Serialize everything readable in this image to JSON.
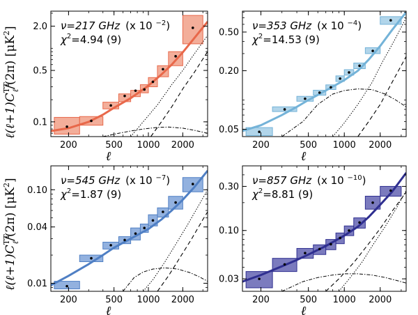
{
  "figure": {
    "ylabel_left": "ℓ(ℓ+1)C",
    "ylabel_sup": "TT",
    "ylabel_sub": "ℓ",
    "ylabel_tail": "/(2π)  [μK",
    "ylabel_sq": "2",
    "ylabel_close": "]",
    "xlabel": "ℓ"
  },
  "chart_data": [
    {
      "type": "line",
      "panel": "top-left",
      "title": "",
      "nu_label": "ν=217 GHz",
      "scale_label": "(x 10",
      "scale_exp": "−2",
      "chi2_label": "χ",
      "chi2_sup": "2",
      "chi2_value": "=4.94 (9)",
      "color": "#e8684a",
      "fill_color": "#f2a58f",
      "xlim": [
        140,
        3300
      ],
      "ylim": [
        0.063,
        3.2
      ],
      "xscale": "log",
      "yscale": "log",
      "xticks": [
        200,
        500,
        1000,
        2000
      ],
      "xtick_labels": [
        "200",
        "500",
        "1000",
        "2000"
      ],
      "yticks": [
        0.1,
        0.5,
        2.0
      ],
      "ytick_labels": [
        "0.1",
        "0.5",
        "2.0"
      ],
      "bins": [
        {
          "lo": 150,
          "hi": 250,
          "ylo": 0.068,
          "yhi": 0.115,
          "y": 0.086
        },
        {
          "lo": 250,
          "hi": 400,
          "ylo": 0.09,
          "yhi": 0.118,
          "y": 0.103
        },
        {
          "lo": 400,
          "hi": 550,
          "ylo": 0.15,
          "yhi": 0.185,
          "y": 0.167
        },
        {
          "lo": 550,
          "hi": 700,
          "ylo": 0.188,
          "yhi": 0.24,
          "y": 0.225
        },
        {
          "lo": 700,
          "hi": 850,
          "ylo": 0.22,
          "yhi": 0.268,
          "y": 0.265
        },
        {
          "lo": 850,
          "hi": 1000,
          "ylo": 0.248,
          "yhi": 0.32,
          "y": 0.275
        },
        {
          "lo": 1000,
          "hi": 1200,
          "ylo": 0.3,
          "yhi": 0.4,
          "y": 0.35
        },
        {
          "lo": 1200,
          "hi": 1500,
          "ylo": 0.41,
          "yhi": 0.58,
          "y": 0.52
        },
        {
          "lo": 1500,
          "hi": 2000,
          "ylo": 0.58,
          "yhi": 0.9,
          "y": 0.78
        },
        {
          "lo": 2000,
          "hi": 3000,
          "ylo": 1.15,
          "yhi": 2.8,
          "y": 1.9
        }
      ],
      "total_model": {
        "x": [
          140,
          200,
          300,
          400,
          500,
          700,
          1000,
          1300,
          1600,
          2000,
          2500,
          3300
        ],
        "y": [
          0.075,
          0.082,
          0.1,
          0.125,
          0.155,
          0.21,
          0.31,
          0.44,
          0.6,
          0.88,
          1.35,
          2.3
        ]
      },
      "dotted_model": {
        "x": [
          700,
          900,
          1200,
          1600,
          2000,
          2500,
          3300
        ],
        "y": [
          0.063,
          0.1,
          0.17,
          0.32,
          0.5,
          0.82,
          1.5
        ]
      },
      "dashed_model": {
        "x": [
          1050,
          1300,
          1600,
          2000,
          2500,
          3300
        ],
        "y": [
          0.063,
          0.1,
          0.16,
          0.28,
          0.46,
          0.9
        ]
      },
      "dashdot_model": {
        "x": [
          400,
          550,
          700,
          900,
          1200,
          1500,
          2000,
          2500,
          3300
        ],
        "y": [
          0.063,
          0.07,
          0.075,
          0.08,
          0.084,
          0.085,
          0.082,
          0.077,
          0.07
        ]
      }
    },
    {
      "type": "line",
      "panel": "top-right",
      "title": "",
      "nu_label": "ν=353 GHz",
      "scale_label": "(x 10",
      "scale_exp": "−4",
      "chi2_label": "χ",
      "chi2_sup": "2",
      "chi2_value": "=14.53 (9)",
      "color": "#74b3d8",
      "fill_color": "#a9d0e8",
      "xlim": [
        140,
        3300
      ],
      "ylim": [
        0.042,
        0.82
      ],
      "xscale": "log",
      "yscale": "log",
      "xticks": [
        200,
        500,
        1000,
        2000
      ],
      "xtick_labels": [
        "200",
        "500",
        "1000",
        "2000"
      ],
      "yticks": [
        0.05,
        0.2,
        0.5
      ],
      "ytick_labels": [
        "0.05",
        "0.20",
        "0.50"
      ],
      "bins": [
        {
          "lo": 150,
          "hi": 250,
          "ylo": 0.043,
          "yhi": 0.052,
          "y": 0.047
        },
        {
          "lo": 250,
          "hi": 400,
          "ylo": 0.076,
          "yhi": 0.085,
          "y": 0.08
        },
        {
          "lo": 400,
          "hi": 550,
          "ylo": 0.097,
          "yhi": 0.109,
          "y": 0.103
        },
        {
          "lo": 550,
          "hi": 700,
          "ylo": 0.112,
          "yhi": 0.126,
          "y": 0.119
        },
        {
          "lo": 700,
          "hi": 850,
          "ylo": 0.128,
          "yhi": 0.143,
          "y": 0.135
        },
        {
          "lo": 850,
          "hi": 1000,
          "ylo": 0.155,
          "yhi": 0.177,
          "y": 0.166
        },
        {
          "lo": 1000,
          "hi": 1200,
          "ylo": 0.18,
          "yhi": 0.205,
          "y": 0.192
        },
        {
          "lo": 1200,
          "hi": 1500,
          "ylo": 0.21,
          "yhi": 0.24,
          "y": 0.225
        },
        {
          "lo": 1500,
          "hi": 2000,
          "ylo": 0.3,
          "yhi": 0.345,
          "y": 0.32
        },
        {
          "lo": 2000,
          "hi": 3000,
          "ylo": 0.6,
          "yhi": 0.72,
          "y": 0.66
        }
      ],
      "total_model": {
        "x": [
          140,
          200,
          300,
          400,
          500,
          700,
          1000,
          1300,
          1600,
          2000,
          2500,
          3300
        ],
        "y": [
          0.048,
          0.055,
          0.07,
          0.085,
          0.1,
          0.125,
          0.16,
          0.2,
          0.26,
          0.36,
          0.52,
          0.8
        ]
      },
      "dotted_model": {
        "x": [
          800,
          1000,
          1300,
          1700,
          2100,
          2600,
          3300
        ],
        "y": [
          0.042,
          0.058,
          0.09,
          0.15,
          0.25,
          0.4,
          0.7
        ]
      },
      "dashed_model": {
        "x": [
          1300,
          1600,
          2000,
          2500,
          3300
        ],
        "y": [
          0.042,
          0.06,
          0.09,
          0.15,
          0.28
        ]
      },
      "dashdot_model": {
        "x": [
          300,
          450,
          600,
          800,
          1000,
          1300,
          1700,
          2200,
          2700,
          3300
        ],
        "y": [
          0.042,
          0.06,
          0.09,
          0.115,
          0.125,
          0.13,
          0.128,
          0.115,
          0.1,
          0.085
        ]
      }
    },
    {
      "type": "line",
      "panel": "bottom-left",
      "title": "",
      "nu_label": "ν=545 GHz",
      "scale_label": "(x 10",
      "scale_exp": "−7",
      "chi2_label": "χ",
      "chi2_sup": "2",
      "chi2_value": "=1.87 (9)",
      "color": "#4f7fc4",
      "fill_color": "#86a9db",
      "xlim": [
        140,
        3300
      ],
      "ylim": [
        0.0082,
        0.18
      ],
      "xscale": "log",
      "yscale": "log",
      "xticks": [
        200,
        500,
        1000,
        2000
      ],
      "xtick_labels": [
        "200",
        "500",
        "1000",
        "2000"
      ],
      "yticks": [
        0.01,
        0.04,
        0.1
      ],
      "ytick_labels": [
        "0.01",
        "0.04",
        "0.10"
      ],
      "bins": [
        {
          "lo": 150,
          "hi": 250,
          "ylo": 0.0087,
          "yhi": 0.0105,
          "y": 0.0093
        },
        {
          "lo": 250,
          "hi": 400,
          "ylo": 0.017,
          "yhi": 0.02,
          "y": 0.0185
        },
        {
          "lo": 400,
          "hi": 550,
          "ylo": 0.0232,
          "yhi": 0.0275,
          "y": 0.0255
        },
        {
          "lo": 550,
          "hi": 700,
          "ylo": 0.0265,
          "yhi": 0.0315,
          "y": 0.029
        },
        {
          "lo": 700,
          "hi": 850,
          "ylo": 0.029,
          "yhi": 0.039,
          "y": 0.034
        },
        {
          "lo": 850,
          "hi": 1000,
          "ylo": 0.035,
          "yhi": 0.043,
          "y": 0.039
        },
        {
          "lo": 1000,
          "hi": 1200,
          "ylo": 0.041,
          "yhi": 0.054,
          "y": 0.047
        },
        {
          "lo": 1200,
          "hi": 1500,
          "ylo": 0.051,
          "yhi": 0.064,
          "y": 0.058
        },
        {
          "lo": 1500,
          "hi": 2000,
          "ylo": 0.062,
          "yhi": 0.085,
          "y": 0.073
        },
        {
          "lo": 2000,
          "hi": 3000,
          "ylo": 0.095,
          "yhi": 0.135,
          "y": 0.115
        }
      ],
      "total_model": {
        "x": [
          140,
          200,
          300,
          400,
          500,
          700,
          1000,
          1300,
          1600,
          2000,
          2500,
          3300
        ],
        "y": [
          0.0095,
          0.012,
          0.016,
          0.02,
          0.024,
          0.03,
          0.038,
          0.048,
          0.06,
          0.078,
          0.105,
          0.16
        ]
      },
      "dotted_model": {
        "x": [
          900,
          1100,
          1400,
          1800,
          2200,
          2700,
          3300
        ],
        "y": [
          0.0082,
          0.011,
          0.017,
          0.028,
          0.042,
          0.065,
          0.1
        ]
      },
      "dashed_model": {
        "x": [
          1200,
          1500,
          1900,
          2400,
          3000,
          3300
        ],
        "y": [
          0.0082,
          0.012,
          0.019,
          0.03,
          0.048,
          0.058
        ]
      },
      "dashdot_model": {
        "x": [
          600,
          750,
          900,
          1100,
          1400,
          1800,
          2300,
          2800,
          3300
        ],
        "y": [
          0.0082,
          0.0115,
          0.0132,
          0.0142,
          0.0146,
          0.0142,
          0.013,
          0.0117,
          0.0105
        ]
      }
    },
    {
      "type": "line",
      "panel": "bottom-right",
      "title": "",
      "nu_label": "ν=857 GHz",
      "scale_label": "(x 10",
      "scale_exp": "−10",
      "chi2_label": "χ",
      "chi2_sup": "2",
      "chi2_value": "=8.81 (9)",
      "color": "#2f2f90",
      "fill_color": "#6d6db7",
      "xlim": [
        140,
        3300
      ],
      "ylim": [
        0.022,
        0.5
      ],
      "xscale": "log",
      "yscale": "log",
      "xticks": [
        200,
        500,
        1000,
        2000
      ],
      "xtick_labels": [
        "200",
        "500",
        "1000",
        "2000"
      ],
      "yticks": [
        0.03,
        0.1,
        0.3
      ],
      "ytick_labels": [
        "0.03",
        "0.10",
        "0.30"
      ],
      "bins": [
        {
          "lo": 150,
          "hi": 250,
          "ylo": 0.024,
          "yhi": 0.036,
          "y": 0.03
        },
        {
          "lo": 250,
          "hi": 400,
          "ylo": 0.036,
          "yhi": 0.05,
          "y": 0.043
        },
        {
          "lo": 400,
          "hi": 550,
          "ylo": 0.05,
          "yhi": 0.064,
          "y": 0.057
        },
        {
          "lo": 550,
          "hi": 700,
          "ylo": 0.055,
          "yhi": 0.07,
          "y": 0.063
        },
        {
          "lo": 700,
          "hi": 850,
          "ylo": 0.062,
          "yhi": 0.08,
          "y": 0.071
        },
        {
          "lo": 850,
          "hi": 1000,
          "ylo": 0.072,
          "yhi": 0.094,
          "y": 0.083
        },
        {
          "lo": 1000,
          "hi": 1200,
          "ylo": 0.088,
          "yhi": 0.112,
          "y": 0.1
        },
        {
          "lo": 1200,
          "hi": 1500,
          "ylo": 0.106,
          "yhi": 0.137,
          "y": 0.122
        },
        {
          "lo": 1500,
          "hi": 2000,
          "ylo": 0.17,
          "yhi": 0.235,
          "y": 0.2
        },
        {
          "lo": 2000,
          "hi": 3000,
          "ylo": 0.235,
          "yhi": 0.3,
          "y": 0.27
        }
      ],
      "total_model": {
        "x": [
          140,
          200,
          300,
          400,
          500,
          700,
          1000,
          1300,
          1600,
          2000,
          2500,
          3300
        ],
        "y": [
          0.028,
          0.033,
          0.041,
          0.048,
          0.055,
          0.068,
          0.088,
          0.11,
          0.14,
          0.19,
          0.26,
          0.42
        ]
      },
      "dotted_model": {
        "x": [
          900,
          1100,
          1400,
          1800,
          2200,
          2700,
          3300
        ],
        "y": [
          0.022,
          0.03,
          0.045,
          0.075,
          0.11,
          0.17,
          0.27
        ]
      },
      "dashed_model": {
        "x": [
          700,
          900,
          1200,
          1600,
          2000,
          2500,
          3300
        ],
        "y": [
          0.022,
          0.03,
          0.045,
          0.072,
          0.105,
          0.16,
          0.26
        ]
      },
      "dashdot_model": {
        "x": [
          300,
          450,
          600,
          800,
          1000,
          1300,
          1700,
          2200,
          2700,
          3300
        ],
        "y": [
          0.022,
          0.028,
          0.031,
          0.033,
          0.034,
          0.034,
          0.033,
          0.031,
          0.029,
          0.027
        ]
      }
    }
  ]
}
